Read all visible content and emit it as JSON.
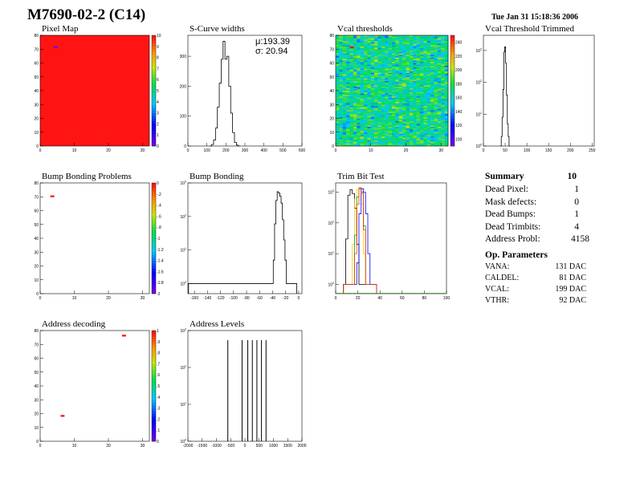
{
  "page": {
    "title": "M7690-02-2 (C14)",
    "date": "Tue Jan 31 15:18:36 2006"
  },
  "colors": {
    "red": "#ff1a1a",
    "line": "#000000",
    "frame": "#000000"
  },
  "chart_data": [
    {
      "id": "pixel-map",
      "type": "heatmap",
      "title": "Pixel Map",
      "xlim": [
        0,
        32
      ],
      "ylim": [
        0,
        80
      ],
      "xticks": [
        0,
        10,
        20,
        30
      ],
      "yticks": [
        0,
        10,
        20,
        30,
        40,
        50,
        60,
        70,
        80
      ],
      "zlim": [
        0,
        10
      ],
      "zticks": [
        0,
        1,
        2,
        3,
        4,
        5,
        6,
        7,
        8,
        9,
        10
      ],
      "fill_value": 10,
      "points": [
        {
          "x": 4,
          "y": 71,
          "z": 0
        }
      ]
    },
    {
      "id": "scurve-widths",
      "type": "line",
      "title": "S-Curve widths",
      "xlim": [
        0,
        600
      ],
      "ylim": [
        0,
        370
      ],
      "xticks": [
        0,
        100,
        200,
        300,
        400,
        500,
        600
      ],
      "yticks": [
        0,
        100,
        200,
        300
      ],
      "stats": {
        "mean_label": "μ:",
        "mean": "193.39",
        "sigma_label": "σ:",
        "sigma": "20.94"
      },
      "x": [
        120,
        130,
        140,
        150,
        160,
        170,
        180,
        190,
        200,
        210,
        220,
        230,
        240,
        250,
        260,
        270
      ],
      "y": [
        0,
        5,
        20,
        60,
        130,
        210,
        290,
        350,
        290,
        300,
        200,
        110,
        45,
        12,
        3,
        0
      ]
    },
    {
      "id": "vcal-thresholds",
      "type": "heatmap",
      "title": "Vcal thresholds",
      "xlim": [
        0,
        32
      ],
      "ylim": [
        0,
        80
      ],
      "xticks": [
        0,
        10,
        20,
        30
      ],
      "yticks": [
        0,
        10,
        20,
        30,
        40,
        50,
        60,
        70,
        80
      ],
      "zlim": [
        90,
        250
      ],
      "zticks": [
        100,
        120,
        140,
        160,
        180,
        200,
        220,
        240
      ],
      "mean": 170,
      "spread": 40,
      "points": [
        {
          "x": 4,
          "y": 71,
          "z": 250
        }
      ]
    },
    {
      "id": "vcal-trimmed",
      "type": "line",
      "title": "Vcal Threshold Trimmed",
      "xlim": [
        0,
        255
      ],
      "ylog": true,
      "ylim": [
        1,
        3000
      ],
      "xticks": [
        0,
        50,
        100,
        150,
        200,
        250
      ],
      "ylogticks": [
        1,
        10,
        100,
        1000
      ],
      "x": [
        40,
        42,
        44,
        46,
        48,
        50,
        52,
        54,
        56,
        58,
        60
      ],
      "y": [
        1,
        2,
        8,
        60,
        900,
        1300,
        400,
        40,
        5,
        2,
        1
      ]
    },
    {
      "id": "bump-bonding-problems",
      "type": "heatmap",
      "title": "Bump Bonding Problems",
      "xlim": [
        0,
        32
      ],
      "ylim": [
        0,
        80
      ],
      "xticks": [
        0,
        10,
        20,
        30
      ],
      "yticks": [
        0,
        10,
        20,
        30,
        40,
        50,
        60,
        70,
        80
      ],
      "zlim": [
        -2,
        0
      ],
      "zticks": [
        0,
        -0.2,
        -0.4,
        -0.6,
        -0.8,
        -1,
        -1.2,
        -1.4,
        -1.6,
        -1.8,
        -2
      ],
      "points": [
        {
          "x": 3,
          "y": 70,
          "z": 0
        }
      ]
    },
    {
      "id": "bump-bonding",
      "type": "line",
      "title": "Bump Bonding",
      "xlim": [
        -170,
        5
      ],
      "ylog": true,
      "ylim": [
        0.5,
        1000
      ],
      "xticks": [
        -160,
        -140,
        -120,
        -100,
        -80,
        -60,
        -40,
        -20,
        0
      ],
      "ylogticks": [
        1,
        10,
        100,
        1000
      ],
      "x": [
        -168,
        -166,
        -164,
        -60,
        -40,
        -38,
        -36,
        -34,
        -32,
        -30,
        -28,
        -26,
        -24,
        -22,
        -20,
        -18,
        -6,
        -4
      ],
      "y": [
        1,
        1,
        1,
        1,
        1,
        5,
        60,
        300,
        550,
        500,
        400,
        250,
        80,
        20,
        5,
        1,
        1,
        1
      ]
    },
    {
      "id": "trim-bit-test",
      "type": "line",
      "title": "Trim Bit Test",
      "xlim": [
        0,
        100
      ],
      "ylog": true,
      "ylim": [
        0.5,
        2000
      ],
      "xticks": [
        0,
        20,
        40,
        60,
        80,
        100
      ],
      "ylogticks": [
        1,
        10,
        100,
        1000
      ],
      "x": [
        8,
        10,
        12,
        14,
        16,
        18,
        20,
        22,
        24,
        26,
        28,
        30,
        32,
        34,
        36
      ],
      "series": [
        {
          "color": "#000000",
          "values": [
            1,
            30,
            800,
            1200,
            900,
            300,
            20,
            1,
            1,
            1,
            1,
            1,
            1,
            1,
            1
          ]
        },
        {
          "color": "#ffcc00",
          "values": [
            1,
            1,
            1,
            1,
            20,
            600,
            1200,
            1300,
            400,
            10,
            1,
            1,
            1,
            1,
            1
          ]
        },
        {
          "color": "#00aa00",
          "values": [
            1,
            1,
            1,
            1,
            1,
            40,
            700,
            1300,
            1000,
            80,
            1,
            1,
            1,
            1,
            1
          ]
        },
        {
          "color": "#0000ff",
          "values": [
            1,
            1,
            1,
            1,
            1,
            1,
            5,
            200,
            1300,
            1000,
            200,
            10,
            1,
            1,
            1
          ]
        },
        {
          "color": "#ff3300",
          "values": [
            1,
            1,
            1,
            1,
            1,
            10,
            400,
            1400,
            900,
            60,
            1,
            1,
            1,
            1,
            1
          ]
        }
      ]
    },
    {
      "id": "address-decoding",
      "type": "heatmap",
      "title": "Address decoding",
      "xlim": [
        0,
        32
      ],
      "ylim": [
        0,
        80
      ],
      "xticks": [
        0,
        10,
        20,
        30
      ],
      "yticks": [
        0,
        10,
        20,
        30,
        40,
        50,
        60,
        70,
        80
      ],
      "zlim": [
        0,
        1
      ],
      "zticks": [
        0,
        0.1,
        0.2,
        0.3,
        0.4,
        0.5,
        0.6,
        0.7,
        0.8,
        0.9,
        1
      ],
      "points": [
        {
          "x": 24,
          "y": 76,
          "z": 1
        },
        {
          "x": 6,
          "y": 18,
          "z": 1
        }
      ]
    },
    {
      "id": "address-levels",
      "type": "line",
      "title": "Address Levels",
      "xlim": [
        -2000,
        2000
      ],
      "ylog": true,
      "ylim": [
        1,
        1000
      ],
      "xticks": [
        -2000,
        -1500,
        -1000,
        -500,
        0,
        500,
        1000,
        1500,
        2000
      ],
      "ylogticks": [
        1,
        10,
        100,
        1000
      ],
      "spikes": [
        -600,
        -100,
        100,
        260,
        420,
        580,
        740
      ],
      "spike_height": 550
    }
  ],
  "summary": {
    "title": "Summary",
    "total": "10",
    "rows": [
      {
        "label": "Dead Pixel:",
        "value": "1"
      },
      {
        "label": "Mask defects:",
        "value": "0"
      },
      {
        "label": "Dead Bumps:",
        "value": "1"
      },
      {
        "label": "Dead Trimbits:",
        "value": "4"
      },
      {
        "label": "Address Probl:",
        "value": "4158"
      }
    ]
  },
  "op_params": {
    "title": "Op. Parameters",
    "rows": [
      {
        "label": "VANA:",
        "value": "131 DAC"
      },
      {
        "label": "CALDEL:",
        "value": "81 DAC"
      },
      {
        "label": "VCAL:",
        "value": "199 DAC"
      },
      {
        "label": "VTHR:",
        "value": "92 DAC"
      }
    ]
  }
}
